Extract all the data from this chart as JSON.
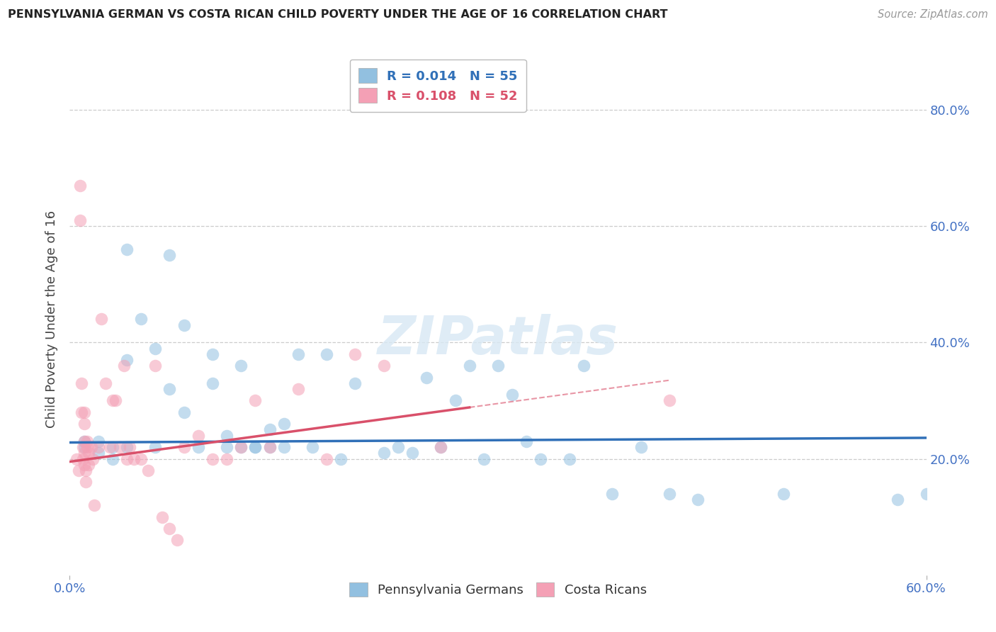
{
  "title": "PENNSYLVANIA GERMAN VS COSTA RICAN CHILD POVERTY UNDER THE AGE OF 16 CORRELATION CHART",
  "source": "Source: ZipAtlas.com",
  "ylabel": "Child Poverty Under the Age of 16",
  "legend_labels": [
    "Pennsylvania Germans",
    "Costa Ricans"
  ],
  "legend_r_blue": "0.014",
  "legend_n_blue": "55",
  "legend_r_pink": "0.108",
  "legend_n_pink": "52",
  "blue_color": "#92c0e0",
  "pink_color": "#f4a0b5",
  "blue_line_color": "#3070b8",
  "pink_line_color": "#d9506a",
  "watermark": "ZIPatlas",
  "xlim": [
    0.0,
    0.6
  ],
  "ylim": [
    0.0,
    0.88
  ],
  "yticks": [
    0.0,
    0.2,
    0.4,
    0.6,
    0.8
  ],
  "ytick_labels": [
    "",
    "20.0%",
    "40.0%",
    "60.0%",
    "80.0%"
  ],
  "xtick_labels": [
    "0.0%",
    "60.0%"
  ],
  "blue_x": [
    0.01,
    0.01,
    0.02,
    0.02,
    0.03,
    0.03,
    0.04,
    0.04,
    0.04,
    0.05,
    0.06,
    0.06,
    0.07,
    0.07,
    0.08,
    0.08,
    0.09,
    0.1,
    0.1,
    0.11,
    0.11,
    0.12,
    0.12,
    0.13,
    0.13,
    0.14,
    0.14,
    0.15,
    0.15,
    0.16,
    0.17,
    0.18,
    0.19,
    0.2,
    0.22,
    0.23,
    0.24,
    0.25,
    0.26,
    0.27,
    0.28,
    0.29,
    0.3,
    0.31,
    0.32,
    0.33,
    0.35,
    0.36,
    0.38,
    0.4,
    0.42,
    0.44,
    0.5,
    0.58,
    0.6
  ],
  "blue_y": [
    0.23,
    0.22,
    0.23,
    0.21,
    0.22,
    0.2,
    0.56,
    0.37,
    0.22,
    0.44,
    0.39,
    0.22,
    0.55,
    0.32,
    0.43,
    0.28,
    0.22,
    0.38,
    0.33,
    0.24,
    0.22,
    0.22,
    0.36,
    0.22,
    0.22,
    0.25,
    0.22,
    0.26,
    0.22,
    0.38,
    0.22,
    0.38,
    0.2,
    0.33,
    0.21,
    0.22,
    0.21,
    0.34,
    0.22,
    0.3,
    0.36,
    0.2,
    0.36,
    0.31,
    0.23,
    0.2,
    0.2,
    0.36,
    0.14,
    0.22,
    0.14,
    0.13,
    0.14,
    0.13,
    0.14
  ],
  "pink_x": [
    0.005,
    0.006,
    0.007,
    0.007,
    0.008,
    0.008,
    0.009,
    0.009,
    0.01,
    0.01,
    0.01,
    0.01,
    0.01,
    0.011,
    0.011,
    0.012,
    0.012,
    0.013,
    0.013,
    0.015,
    0.016,
    0.017,
    0.02,
    0.022,
    0.025,
    0.028,
    0.03,
    0.032,
    0.035,
    0.038,
    0.04,
    0.042,
    0.045,
    0.05,
    0.055,
    0.06,
    0.065,
    0.07,
    0.075,
    0.08,
    0.09,
    0.1,
    0.11,
    0.12,
    0.13,
    0.14,
    0.16,
    0.18,
    0.2,
    0.22,
    0.26,
    0.42
  ],
  "pink_y": [
    0.2,
    0.18,
    0.67,
    0.61,
    0.33,
    0.28,
    0.22,
    0.2,
    0.28,
    0.26,
    0.23,
    0.21,
    0.19,
    0.18,
    0.16,
    0.23,
    0.22,
    0.21,
    0.19,
    0.22,
    0.2,
    0.12,
    0.22,
    0.44,
    0.33,
    0.22,
    0.3,
    0.3,
    0.22,
    0.36,
    0.2,
    0.22,
    0.2,
    0.2,
    0.18,
    0.36,
    0.1,
    0.08,
    0.06,
    0.22,
    0.24,
    0.2,
    0.2,
    0.22,
    0.3,
    0.22,
    0.32,
    0.2,
    0.38,
    0.36,
    0.22,
    0.3
  ],
  "blue_trend_x": [
    0.0,
    0.6
  ],
  "blue_trend_y": [
    0.228,
    0.236
  ],
  "pink_trend_x": [
    0.0,
    0.42
  ],
  "pink_trend_y": [
    0.195,
    0.335
  ]
}
